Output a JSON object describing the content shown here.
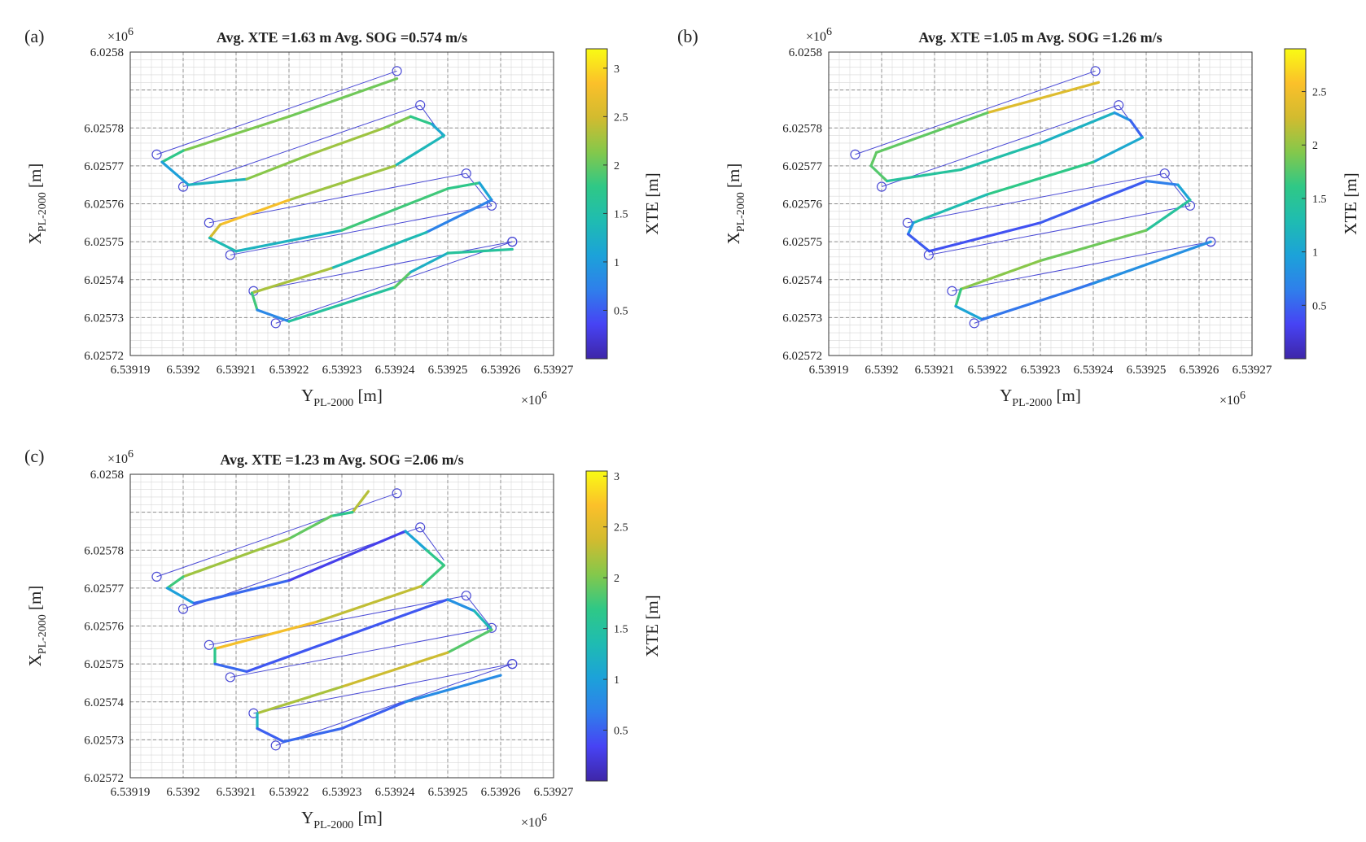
{
  "figure": {
    "colormap": [
      "#3e26a8",
      "#4743f4",
      "#2f7feb",
      "#1ca2d9",
      "#1fbcb1",
      "#2fc886",
      "#84c84b",
      "#d2bb2f",
      "#fbc02a",
      "#f9fb14"
    ],
    "grid_color": "#999999",
    "waypoint_color": "#4b4bd6"
  },
  "waypoints": {
    "rows": [
      {
        "start": [
          6.539195,
          6.025773
        ],
        "end": [
          6.5392404,
          6.025795
        ]
      },
      {
        "start": [
          6.5392,
          6.0257645
        ],
        "end": [
          6.5392448,
          6.025786
        ]
      },
      {
        "start": [
          6.5392049,
          6.025755
        ],
        "end": [
          6.5392535,
          6.025768
        ]
      },
      {
        "start": [
          6.5392089,
          6.0257465
        ],
        "end": [
          6.5392583,
          6.0257595
        ]
      },
      {
        "start": [
          6.5392133,
          6.025737
        ],
        "end": [
          6.5392622,
          6.02575
        ]
      },
      {
        "start": [
          6.5392175,
          6.0257285
        ],
        "end": [
          6.5392622,
          6.02575
        ]
      }
    ],
    "connectors": [
      [
        [
          6.5392448,
          6.025786
        ],
        [
          6.5392493,
          6.0257773
        ]
      ],
      [
        [
          6.5392535,
          6.025768
        ],
        [
          6.5392583,
          6.0257595
        ]
      ]
    ]
  },
  "panels": [
    {
      "label": "(a)",
      "chart_data": {
        "type": "line",
        "title": "Avg. XTE =1.63 m Avg. SOG =0.574 m/s",
        "xlabel_main": "Y",
        "xlabel_sub": "PL-2000",
        "xlabel_unit": " [m]",
        "ylabel_main": "X",
        "ylabel_sub": "PL-2000",
        "ylabel_unit": " [m]",
        "xlim": [
          6.53919,
          6.53927
        ],
        "ylim": [
          6.02572,
          6.0258
        ],
        "xticks": [
          "6.53919",
          "6.5392",
          "6.53921",
          "6.53922",
          "6.53923",
          "6.53924",
          "6.53925",
          "6.53926",
          "6.53927"
        ],
        "yticks": [
          "6.02572",
          "6.02573",
          "6.02574",
          "6.02575",
          "6.02576",
          "6.02577",
          "6.02578",
          "6.0258"
        ],
        "y_exponent": "×10",
        "x_exponent": "×10",
        "exponent_power": "6",
        "colorbar": {
          "label": "XTE [m]",
          "min": 0,
          "max": 3.2,
          "ticks": [
            "0.5",
            "1",
            "1.5",
            "2",
            "2.5",
            "3"
          ]
        },
        "series": [
          {
            "name": "trajectory",
            "points": [
              [
                6.5392404,
                6.025793,
                1.9
              ],
              [
                6.53922,
                6.025783,
                2.2
              ],
              [
                6.5392,
                6.025774,
                2.0
              ],
              [
                6.539196,
                6.025771,
                1.5
              ],
              [
                6.539201,
                6.025765,
                0.6
              ],
              [
                6.539212,
                6.0257665,
                2.0
              ],
              [
                6.539224,
                6.025773,
                2.3
              ],
              [
                6.539238,
                6.02578,
                2.2
              ],
              [
                6.539243,
                6.025783,
                2.0
              ],
              [
                6.539247,
                6.025781,
                1.5
              ],
              [
                6.5392493,
                6.025778,
                0.8
              ],
              [
                6.53924,
                6.02577,
                1.9
              ],
              [
                6.53922,
                6.025761,
                2.6
              ],
              [
                6.539207,
                6.0257545,
                3.0
              ],
              [
                6.539205,
                6.025751,
                2.0
              ],
              [
                6.53921,
                6.0257475,
                0.8
              ],
              [
                6.53923,
                6.025753,
                1.8
              ],
              [
                6.53925,
                6.025764,
                1.9
              ],
              [
                6.539256,
                6.0257655,
                1.6
              ],
              [
                6.5392583,
                6.025761,
                0.6
              ],
              [
                6.539246,
                6.0257525,
                0.9
              ],
              [
                6.539228,
                6.025743,
                1.9
              ],
              [
                6.539213,
                6.0257365,
                2.7
              ],
              [
                6.539214,
                6.025732,
                1.0
              ],
              [
                6.53922,
                6.025729,
                0.6
              ],
              [
                6.53924,
                6.025738,
                2.6
              ],
              [
                6.539243,
                6.025742,
                1.3
              ],
              [
                6.53925,
                6.025747,
                1.2
              ],
              [
                6.5392622,
                6.025748,
                2.0
              ]
            ]
          }
        ]
      }
    },
    {
      "label": "(b)",
      "chart_data": {
        "type": "line",
        "title": "Avg. XTE =1.05 m Avg. SOG =1.26 m/s",
        "xlabel_main": "Y",
        "xlabel_sub": "PL-2000",
        "xlabel_unit": " [m]",
        "ylabel_main": "X",
        "ylabel_sub": "PL-2000",
        "ylabel_unit": " [m]",
        "xlim": [
          6.53919,
          6.53927
        ],
        "ylim": [
          6.02572,
          6.0258
        ],
        "xticks": [
          "6.53919",
          "6.5392",
          "6.53921",
          "6.53922",
          "6.53923",
          "6.53924",
          "6.53925",
          "6.53926",
          "6.53927"
        ],
        "yticks": [
          "6.02572",
          "6.02573",
          "6.02574",
          "6.02575",
          "6.02576",
          "6.02577",
          "6.02578",
          "6.0258"
        ],
        "y_exponent": "×10",
        "x_exponent": "×10",
        "exponent_power": "6",
        "colorbar": {
          "label": "XTE [m]",
          "min": 0,
          "max": 2.9,
          "ticks": [
            "0.5",
            "1",
            "1.5",
            "2",
            "2.5"
          ]
        },
        "series": [
          {
            "name": "trajectory",
            "points": [
              [
                6.539241,
                6.025792,
                2.7
              ],
              [
                6.53922,
                6.025784,
                2.0
              ],
              [
                6.539199,
                6.0257735,
                1.6
              ],
              [
                6.539198,
                6.02577,
                2.0
              ],
              [
                6.539201,
                6.025766,
                1.5
              ],
              [
                6.539215,
                6.025769,
                1.4
              ],
              [
                6.53923,
                6.025776,
                1.3
              ],
              [
                6.539244,
                6.025784,
                1.0
              ],
              [
                6.539247,
                6.025782,
                0.7
              ],
              [
                6.5392493,
                6.0257775,
                0.3
              ],
              [
                6.53924,
                6.025771,
                1.8
              ],
              [
                6.53922,
                6.0257625,
                1.4
              ],
              [
                6.539206,
                6.025755,
                1.2
              ],
              [
                6.539205,
                6.025752,
                0.5
              ],
              [
                6.539209,
                6.0257475,
                0.4
              ],
              [
                6.53923,
                6.025755,
                0.4
              ],
              [
                6.53925,
                6.025766,
                0.5
              ],
              [
                6.539256,
                6.025765,
                0.8
              ],
              [
                6.5392583,
                6.025761,
                1.2
              ],
              [
                6.53925,
                6.025753,
                1.7
              ],
              [
                6.53923,
                6.025745,
                2.0
              ],
              [
                6.539215,
                6.0257375,
                1.9
              ],
              [
                6.539214,
                6.025733,
                1.4
              ],
              [
                6.539219,
                6.0257295,
                0.6
              ],
              [
                6.53924,
                6.025739,
                0.6
              ],
              [
                6.5392622,
                6.02575,
                1.0
              ]
            ]
          }
        ]
      }
    },
    {
      "label": "(c)",
      "chart_data": {
        "type": "line",
        "title": "Avg. XTE =1.23 m Avg. SOG =2.06 m/s",
        "xlabel_main": "Y",
        "xlabel_sub": "PL-2000",
        "xlabel_unit": " [m]",
        "ylabel_main": "X",
        "ylabel_sub": "PL-2000",
        "ylabel_unit": " [m]",
        "xlim": [
          6.53919,
          6.53927
        ],
        "ylim": [
          6.02572,
          6.0258
        ],
        "xticks": [
          "6.53919",
          "6.5392",
          "6.53921",
          "6.53922",
          "6.53923",
          "6.53924",
          "6.53925",
          "6.53926",
          "6.53927"
        ],
        "yticks": [
          "6.02572",
          "6.02573",
          "6.02574",
          "6.02575",
          "6.02576",
          "6.02577",
          "6.02578",
          "6.0258"
        ],
        "y_exponent": "×10",
        "x_exponent": "×10",
        "exponent_power": "6",
        "colorbar": {
          "label": "XTE [m]",
          "min": 0,
          "max": 3.05,
          "ticks": [
            "0.5",
            "1",
            "1.5",
            "2",
            "2.5",
            "3"
          ]
        },
        "series": [
          {
            "name": "trajectory",
            "points": [
              [
                6.539235,
                6.0257955,
                3.0
              ],
              [
                6.539232,
                6.02579,
                1.5
              ],
              [
                6.539228,
                6.025789,
                1.8
              ],
              [
                6.53922,
                6.025783,
                2.0
              ],
              [
                6.5392,
                6.025773,
                2.3
              ],
              [
                6.539197,
                6.02577,
                1.2
              ],
              [
                6.539202,
                6.025766,
                0.8
              ],
              [
                6.53922,
                6.025772,
                0.3
              ],
              [
                6.539242,
                6.025785,
                0.3
              ],
              [
                6.539246,
                6.02578,
                1.8
              ],
              [
                6.5392493,
                6.025776,
                1.5
              ],
              [
                6.539245,
                6.0257705,
                2.0
              ],
              [
                6.539225,
                6.025761,
                2.6
              ],
              [
                6.539206,
                6.025754,
                2.7
              ],
              [
                6.539206,
                6.02575,
                0.6
              ],
              [
                6.539212,
                6.025748,
                0.5
              ],
              [
                6.53923,
                6.025757,
                0.4
              ],
              [
                6.53925,
                6.025767,
                0.5
              ],
              [
                6.539255,
                6.025764,
                1.2
              ],
              [
                6.5392583,
                6.025759,
                1.4
              ],
              [
                6.53925,
                6.025753,
                2.3
              ],
              [
                6.53923,
                6.025744,
                2.4
              ],
              [
                6.539214,
                6.025737,
                2.0
              ],
              [
                6.539214,
                6.025733,
                0.5
              ],
              [
                6.539219,
                6.0257295,
                0.5
              ],
              [
                6.53923,
                6.025733,
                0.6
              ],
              [
                6.539242,
                6.02574,
                0.4
              ],
              [
                6.53926,
                6.025747,
                1.2
              ]
            ]
          }
        ]
      }
    }
  ]
}
